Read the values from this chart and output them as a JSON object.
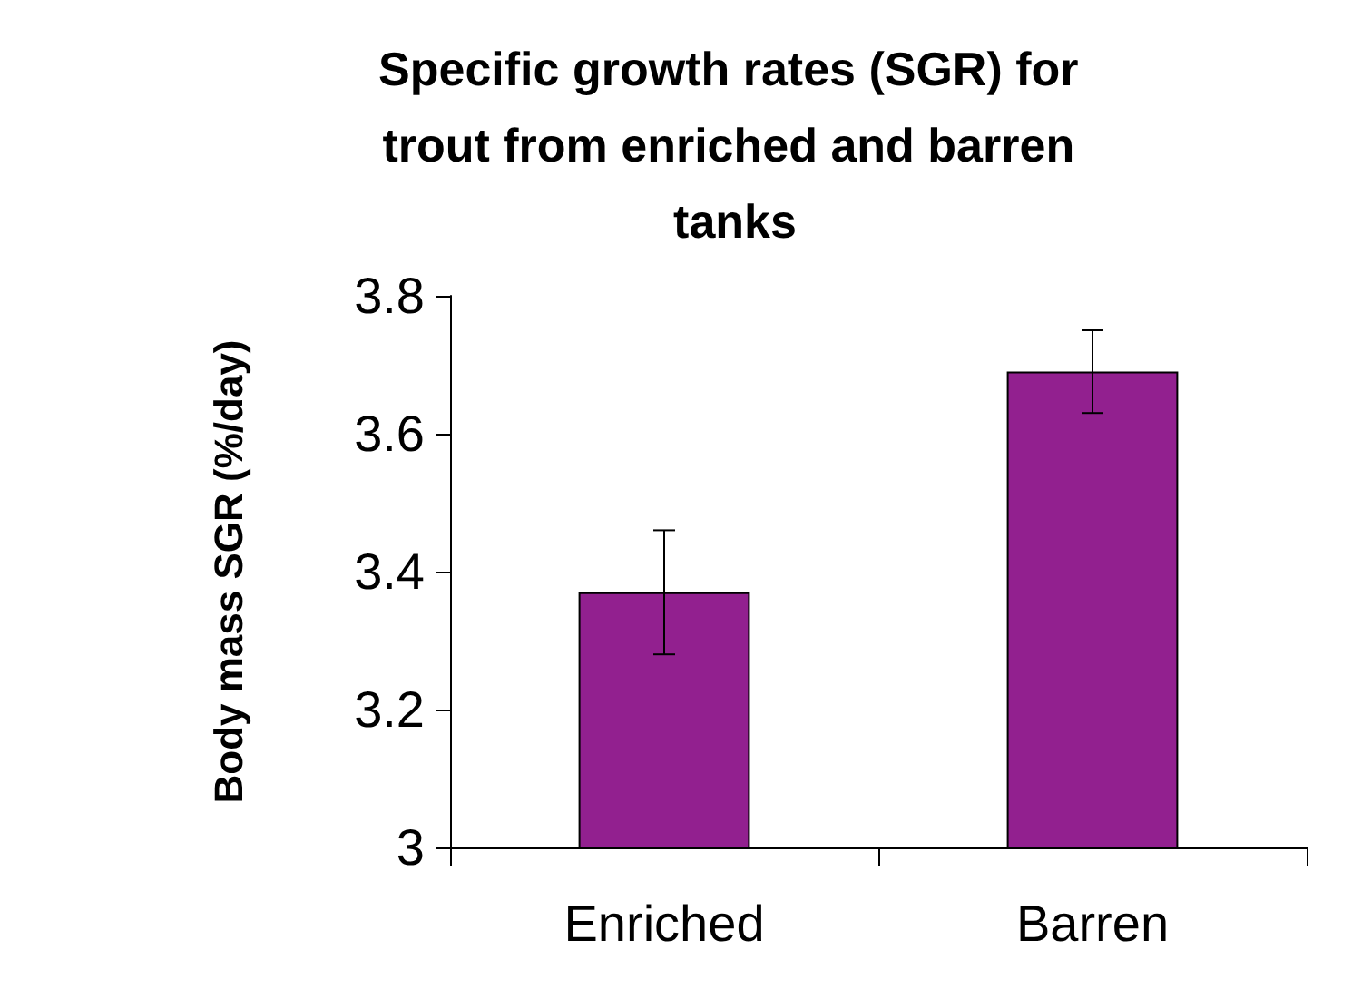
{
  "chart_data": {
    "type": "bar",
    "title": "Specific growth rates (SGR) for trout from enriched and barren tanks",
    "ylabel": "Body mass SGR (%/day)",
    "categories": [
      "Enriched",
      "Barren"
    ],
    "values": [
      3.37,
      3.69
    ],
    "errors": [
      [
        3.28,
        3.46
      ],
      [
        3.63,
        3.75
      ]
    ],
    "color": "#92208f",
    "ylim": [
      3,
      3.8
    ],
    "yticks": [
      3,
      3.2,
      3.4,
      3.6,
      3.8
    ],
    "grid": false
  }
}
